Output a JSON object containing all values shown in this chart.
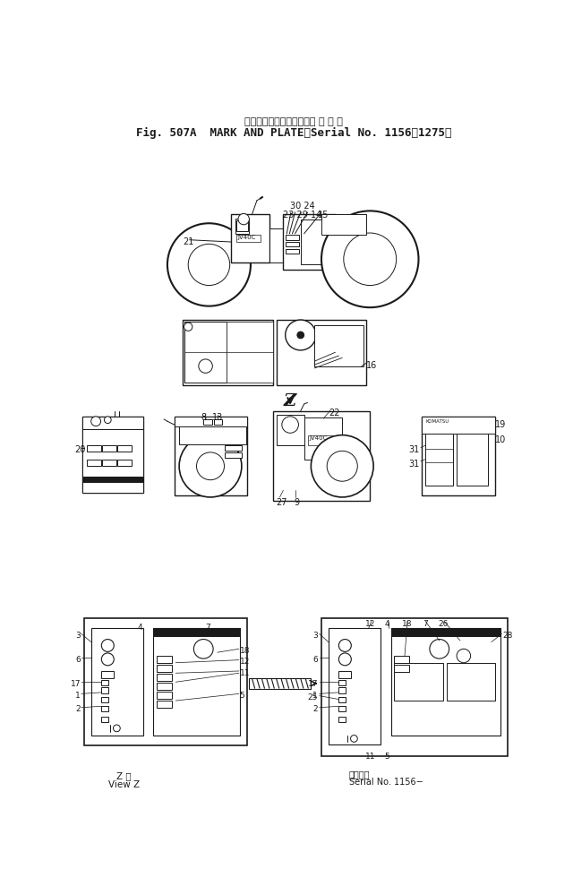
{
  "title_line1": "マークおよびプレート（適 用 号 機",
  "title_line2": "Fig. 507A  MARK AND PLATE（Serial No. 1156～1275）",
  "bg_color": "#ffffff",
  "line_color": "#1a1a1a",
  "fig_width": 6.4,
  "fig_height": 9.99,
  "bottom_left_label1": "Z 視",
  "bottom_left_label2": "View Z",
  "bottom_right_label1": "適用号機",
  "bottom_right_label2": "Serial No. 1156−"
}
